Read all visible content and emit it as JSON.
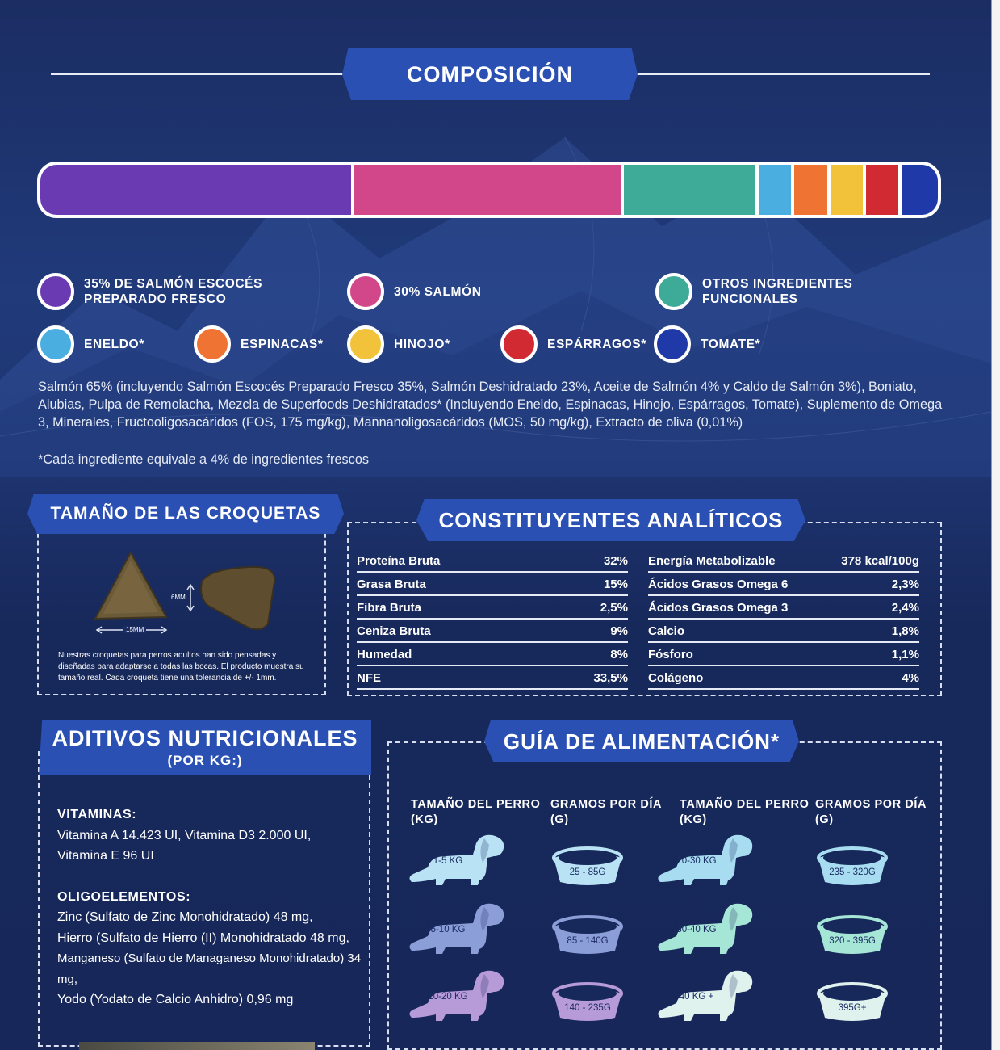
{
  "composition": {
    "title": "COMPOSICIÓN",
    "segments": [
      {
        "share": 35,
        "color": "#6a3ab2"
      },
      {
        "share": 30,
        "color": "#d2478a"
      },
      {
        "share": 15,
        "color": "#3dab98"
      },
      {
        "share": 4,
        "color": "#4aaee0"
      },
      {
        "share": 4,
        "color": "#ef7433"
      },
      {
        "share": 4,
        "color": "#f2c23b"
      },
      {
        "share": 4,
        "color": "#d22a33"
      },
      {
        "share": 4,
        "color": "#1f3aa8"
      }
    ],
    "legend": [
      {
        "label": "35% DE SALMÓN ESCOCÉS\nPREPARADO FRESCO",
        "color": "#6a3ab2"
      },
      {
        "label": "30% SALMÓN",
        "color": "#d2478a"
      },
      {
        "label": "OTROS INGREDIENTES\nFUNCIONALES",
        "color": "#3dab98"
      },
      {
        "label": "ENELDO*",
        "color": "#4aaee0"
      },
      {
        "label": "ESPINACAS*",
        "color": "#ef7433"
      },
      {
        "label": "HINOJO*",
        "color": "#f2c23b"
      },
      {
        "label": "ESPÁRRAGOS*",
        "color": "#d22a33"
      },
      {
        "label": "TOMATE*",
        "color": "#1f3aa8"
      }
    ],
    "ingredients": "Salmón 65% (incluyendo Salmón Escocés Preparado Fresco 35%, Salmón Deshidratado 23%, Aceite de Salmón 4% y Caldo de Salmón 3%), Boniato, Alubias, Pulpa de Remolacha, Mezcla de Superfoods Deshidratados* (Incluyendo Eneldo, Espinacas, Hinojo, Espárragos, Tomate), Suplemento de Omega 3, Minerales, Fructooligosacáridos (FOS, 175 mg/kg), Mannanoligosacáridos (MOS, 50 mg/kg), Extracto de oliva (0,01%)",
    "footnote": "*Cada ingrediente equivale a 4% de ingredientes frescos"
  },
  "kibble": {
    "title": "TAMAÑO DE LAS CROQUETAS",
    "height_label": "6MM",
    "width_label": "15MM",
    "description": "Nuestras croquetas para perros adultos han sido pensadas y diseñadas para adaptarse a todas las bocas. El producto muestra su tamaño real. Cada croqueta tiene una tolerancia de +/- 1mm."
  },
  "analytics": {
    "title": "CONSTITUYENTES ANALÍTICOS",
    "left": [
      {
        "name": "Proteína Bruta",
        "value": "32%"
      },
      {
        "name": "Grasa Bruta",
        "value": "15%"
      },
      {
        "name": "Fibra Bruta",
        "value": "2,5%"
      },
      {
        "name": "Ceniza Bruta",
        "value": "9%"
      },
      {
        "name": "Humedad",
        "value": "8%"
      },
      {
        "name": "NFE",
        "value": "33,5%"
      }
    ],
    "right": [
      {
        "name": "Energía Metabolizable",
        "value": "378 kcal/100g"
      },
      {
        "name": "Ácidos Grasos Omega 6",
        "value": "2,3%"
      },
      {
        "name": "Ácidos Grasos Omega 3",
        "value": "2,4%"
      },
      {
        "name": "Calcio",
        "value": "1,8%"
      },
      {
        "name": "Fósforo",
        "value": "1,1%"
      },
      {
        "name": "Colágeno",
        "value": "4%"
      }
    ]
  },
  "additives": {
    "title": "ADITIVOS NUTRICIONALES",
    "subtitle": "(POR KG:)",
    "vitamins_head": "VITAMINAS:",
    "vitamins": [
      "Vitamina A 14.423 UI, Vitamina D3 2.000 UI,",
      "Vitamina E 96 UI"
    ],
    "trace_head": "OLIGOELEMENTOS:",
    "trace": [
      "Zinc (Sulfato de Zinc Monohidratado) 48 mg,",
      "Hierro (Sulfato de Hierro (II) Monohidratado 48 mg,",
      "Manganeso (Sulfato de Managaneso Monohidratado) 34 mg,",
      "Yodo (Yodato de Calcio Anhidro) 0,96 mg"
    ]
  },
  "feeding": {
    "title": "GUÍA DE ALIMENTACIÓN*",
    "col_dog": "TAMAÑO DEL PERRO\n(KG)",
    "col_grams": "GRAMOS POR DÍA\n(G)",
    "rows_left": [
      {
        "weight": "1-5 KG",
        "grams": "25 - 85G",
        "dog_color": "#b9e2f4",
        "bowl_color": "#b9e2f4"
      },
      {
        "weight": "5-10 KG",
        "grams": "85 - 140G",
        "dog_color": "#8c9ed8",
        "bowl_color": "#8c9ed8"
      },
      {
        "weight": "10-20 KG",
        "grams": "140 - 235G",
        "dog_color": "#b79ad8",
        "bowl_color": "#b79ad8"
      }
    ],
    "rows_right": [
      {
        "weight": "20-30 KG",
        "grams": "235 - 320G",
        "dog_color": "#a8dcf0",
        "bowl_color": "#a8dcf0"
      },
      {
        "weight": "30-40 KG",
        "grams": "320 - 395G",
        "dog_color": "#a6e6d6",
        "bowl_color": "#a6e6d6"
      },
      {
        "weight": "40 KG +",
        "grams": "395G+",
        "dog_color": "#dff2ee",
        "bowl_color": "#dff2ee"
      }
    ]
  }
}
